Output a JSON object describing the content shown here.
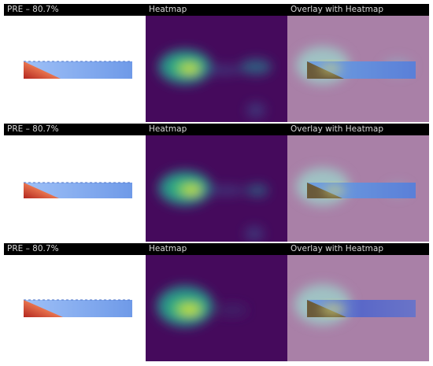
{
  "colors": {
    "title_bar": "#000000",
    "title_text": "#d8d8d8",
    "heatmap_background": "#450a5c",
    "overlay_background": "#a980a7",
    "hotspot": "#f1ea1f",
    "beam_blue": "#7aa6f0",
    "beam_red": "#c9402e"
  },
  "rows": [
    {
      "panels": [
        {
          "title": "PRE – 80.7%",
          "kind": "original",
          "icon": "beam-stress-plot"
        },
        {
          "title": "Heatmap",
          "kind": "heatmap",
          "icon": "attention-heatmap"
        },
        {
          "title": "Overlay with Heatmap",
          "kind": "overlay",
          "icon": "overlay-heatmap"
        }
      ]
    },
    {
      "panels": [
        {
          "title": "PRE – 80.7%",
          "kind": "original",
          "icon": "beam-stress-plot"
        },
        {
          "title": "Heatmap",
          "kind": "heatmap",
          "icon": "attention-heatmap"
        },
        {
          "title": "Overlay with Heatmap",
          "kind": "overlay",
          "icon": "overlay-heatmap"
        }
      ]
    },
    {
      "panels": [
        {
          "title": "PRE – 80.7%",
          "kind": "original",
          "icon": "beam-stress-plot"
        },
        {
          "title": "Heatmap",
          "kind": "heatmap",
          "icon": "attention-heatmap"
        },
        {
          "title": "Overlay with Heatmap",
          "kind": "overlay",
          "icon": "overlay-heatmap"
        }
      ]
    }
  ]
}
